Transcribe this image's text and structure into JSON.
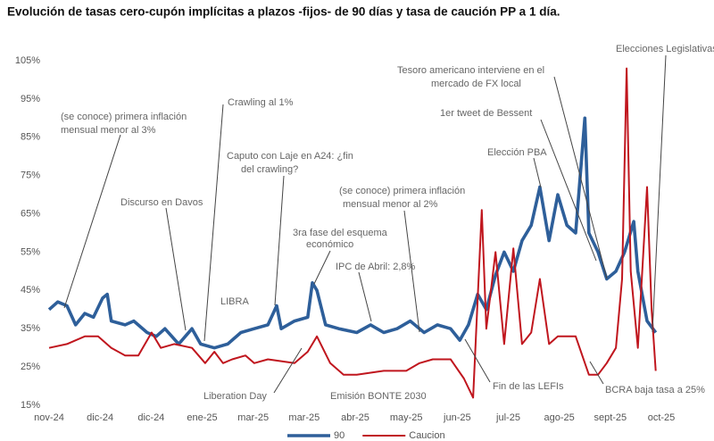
{
  "chart_data": {
    "type": "line",
    "title": "Evolución de tasas cero-cupón implícitas a plazos -fijos- de 90 días y tasa de caución PP a 1 día.",
    "xlim": [
      0,
      12
    ],
    "xticks": [
      {
        "value": 0,
        "label": "nov-24"
      },
      {
        "value": 1,
        "label": "dic-24"
      },
      {
        "value": 2,
        "label": "dic-24"
      },
      {
        "value": 3,
        "label": "ene-25"
      },
      {
        "value": 4,
        "label": "mar-25"
      },
      {
        "value": 5,
        "label": "mar-25"
      },
      {
        "value": 6,
        "label": "abr-25"
      },
      {
        "value": 7,
        "label": "may-25"
      },
      {
        "value": 8,
        "label": "jun-25"
      },
      {
        "value": 9,
        "label": "jul-25"
      },
      {
        "value": 10,
        "label": "ago-25"
      },
      {
        "value": 11,
        "label": "sept-25"
      },
      {
        "value": 12,
        "label": "oct-25"
      }
    ],
    "ylim": [
      15,
      105
    ],
    "yticks": [
      {
        "value": 15,
        "label": "15%"
      },
      {
        "value": 25,
        "label": "25%"
      },
      {
        "value": 35,
        "label": "35%"
      },
      {
        "value": 45,
        "label": "45%"
      },
      {
        "value": 55,
        "label": "55%"
      },
      {
        "value": 65,
        "label": "65%"
      },
      {
        "value": 75,
        "label": "75%"
      },
      {
        "value": 85,
        "label": "85%"
      },
      {
        "value": 95,
        "label": "95%"
      },
      {
        "value": 105,
        "label": "105%"
      }
    ],
    "grid": false,
    "legend": "bottom",
    "series": [
      {
        "name": "90",
        "color": "#2e5f9a",
        "x": [
          0,
          0.17,
          0.35,
          0.52,
          0.7,
          0.87,
          1.05,
          1.14,
          1.22,
          1.49,
          1.66,
          1.92,
          2.1,
          2.27,
          2.54,
          2.8,
          2.97,
          3.24,
          3.5,
          3.76,
          4.02,
          4.29,
          4.46,
          4.55,
          4.81,
          5.07,
          5.16,
          5.25,
          5.42,
          5.68,
          6.03,
          6.3,
          6.56,
          6.82,
          7.08,
          7.35,
          7.61,
          7.87,
          8.05,
          8.22,
          8.4,
          8.57,
          8.75,
          8.92,
          9.1,
          9.27,
          9.45,
          9.62,
          9.8,
          9.97,
          10.15,
          10.32,
          10.5,
          10.58,
          10.76,
          10.93,
          11.11,
          11.28,
          11.46,
          11.54,
          11.72,
          11.89
        ],
        "values": [
          40,
          42,
          41,
          36,
          39,
          38,
          43,
          44,
          37,
          36,
          37,
          34,
          33,
          35,
          31,
          35,
          31,
          30,
          31,
          34,
          35,
          36,
          41,
          35,
          37,
          38,
          47,
          45,
          36,
          35,
          34,
          36,
          34,
          35,
          37,
          34,
          36,
          35,
          32,
          36,
          44,
          40,
          49,
          55,
          50,
          58,
          62,
          72,
          58,
          70,
          62,
          60,
          90,
          60,
          55,
          48,
          50,
          55,
          63,
          50,
          37,
          34
        ]
      },
      {
        "name": "Caucion",
        "color": "#c0161e",
        "x": [
          0,
          0.35,
          0.7,
          0.96,
          1.22,
          1.49,
          1.75,
          2.01,
          2.19,
          2.45,
          2.8,
          3.06,
          3.24,
          3.41,
          3.59,
          3.85,
          4.02,
          4.29,
          4.81,
          5.07,
          5.25,
          5.51,
          5.77,
          6.03,
          6.56,
          7.0,
          7.26,
          7.52,
          7.87,
          8.13,
          8.31,
          8.48,
          8.57,
          8.75,
          8.92,
          9.1,
          9.27,
          9.45,
          9.62,
          9.8,
          9.97,
          10.15,
          10.32,
          10.58,
          10.76,
          10.93,
          11.11,
          11.23,
          11.32,
          11.4,
          11.54,
          11.72,
          11.81,
          11.89
        ],
        "values": [
          30,
          31,
          33,
          33,
          30,
          28,
          28,
          34,
          30,
          31,
          30,
          26,
          29,
          26,
          27,
          28,
          26,
          27,
          26,
          29,
          33,
          26,
          23,
          23,
          24,
          24,
          26,
          27,
          27,
          22,
          17,
          66,
          35,
          55,
          31,
          56,
          31,
          34,
          48,
          31,
          33,
          33,
          33,
          23,
          23,
          26,
          30,
          48,
          103,
          50,
          30,
          72,
          40,
          24
        ]
      }
    ],
    "annotations": [
      {
        "text": [
          "(se conoce) primera inflación",
          "mensual menor al 3%"
        ]
      },
      {
        "text": [
          "Crawling al 1%"
        ]
      },
      {
        "text": [
          "Discurso en Davos"
        ]
      },
      {
        "text": [
          "Caputo con Laje en A24: ¿fin",
          "del crawling?"
        ]
      },
      {
        "text": [
          "LIBRA"
        ]
      },
      {
        "text": [
          "3ra fase del esquema",
          "económico"
        ]
      },
      {
        "text": [
          "(se conoce) primera inflación",
          "mensual menor al 2%"
        ]
      },
      {
        "text": [
          "IPC de Abril: 2,8%"
        ]
      },
      {
        "text": [
          "Liberation Day"
        ]
      },
      {
        "text": [
          "Emisión BONTE 2030"
        ]
      },
      {
        "text": [
          "Fin de las LEFIs"
        ]
      },
      {
        "text": [
          "Elección PBA"
        ]
      },
      {
        "text": [
          "1er tweet de Bessent"
        ]
      },
      {
        "text": [
          "Tesoro americano interviene en el",
          "mercado de FX local"
        ]
      },
      {
        "text": [
          "Elecciones Legislativas"
        ]
      },
      {
        "text": [
          "BCRA baja tasa a 25%"
        ]
      }
    ]
  }
}
